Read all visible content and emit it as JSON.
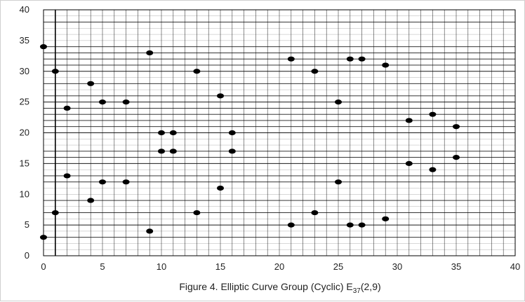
{
  "chart_data": {
    "type": "scatter",
    "caption": "Figure 4. Elliptic Curve Group (Cyclic) E",
    "caption_subscript": "37",
    "caption_tail": "(2,9)",
    "xlim": [
      0,
      40
    ],
    "ylim": [
      0,
      40
    ],
    "x_ticks": [
      0,
      5,
      10,
      15,
      20,
      25,
      30,
      35,
      40
    ],
    "y_ticks": [
      0,
      5,
      10,
      15,
      20,
      25,
      30,
      35,
      40
    ],
    "y_gridlines": [
      0,
      1,
      2,
      3,
      4,
      5,
      6,
      7,
      8,
      9,
      10,
      11,
      12,
      13,
      14,
      15,
      16,
      17,
      18,
      19,
      20,
      21,
      22,
      23,
      24,
      25,
      26,
      27,
      28,
      29,
      30,
      31,
      32,
      33,
      34,
      35,
      36,
      37,
      38,
      39,
      40
    ],
    "y_major_gridlines": [
      3,
      5,
      7,
      9,
      12,
      13,
      15,
      16,
      17,
      20,
      21,
      22,
      23,
      24,
      25,
      26,
      28,
      30,
      31,
      32,
      33,
      34,
      38,
      40
    ],
    "x_gridlines": [
      0,
      1,
      2,
      3,
      4,
      5,
      6,
      7,
      8,
      9,
      10,
      11,
      12,
      13,
      14,
      15,
      16,
      17,
      18,
      19,
      20,
      21,
      22,
      23,
      24,
      25,
      26,
      27,
      28,
      29,
      30,
      31,
      32,
      33,
      34,
      35,
      36,
      37,
      38,
      39,
      40
    ],
    "x_emphasized_line": 1,
    "grid": true,
    "points": [
      {
        "x": 0,
        "y": 3
      },
      {
        "x": 0,
        "y": 34
      },
      {
        "x": 1,
        "y": 7
      },
      {
        "x": 1,
        "y": 30
      },
      {
        "x": 2,
        "y": 13
      },
      {
        "x": 2,
        "y": 24
      },
      {
        "x": 4,
        "y": 9
      },
      {
        "x": 4,
        "y": 28
      },
      {
        "x": 5,
        "y": 12
      },
      {
        "x": 5,
        "y": 25
      },
      {
        "x": 7,
        "y": 12
      },
      {
        "x": 7,
        "y": 25
      },
      {
        "x": 9,
        "y": 4
      },
      {
        "x": 9,
        "y": 33
      },
      {
        "x": 10,
        "y": 17
      },
      {
        "x": 10,
        "y": 20
      },
      {
        "x": 11,
        "y": 17
      },
      {
        "x": 11,
        "y": 20
      },
      {
        "x": 13,
        "y": 7
      },
      {
        "x": 13,
        "y": 30
      },
      {
        "x": 15,
        "y": 11
      },
      {
        "x": 15,
        "y": 26
      },
      {
        "x": 16,
        "y": 17
      },
      {
        "x": 16,
        "y": 20
      },
      {
        "x": 21,
        "y": 5
      },
      {
        "x": 21,
        "y": 32
      },
      {
        "x": 23,
        "y": 7
      },
      {
        "x": 23,
        "y": 30
      },
      {
        "x": 25,
        "y": 12
      },
      {
        "x": 25,
        "y": 25
      },
      {
        "x": 26,
        "y": 5
      },
      {
        "x": 26,
        "y": 32
      },
      {
        "x": 27,
        "y": 5
      },
      {
        "x": 27,
        "y": 32
      },
      {
        "x": 29,
        "y": 6
      },
      {
        "x": 29,
        "y": 31
      },
      {
        "x": 31,
        "y": 15
      },
      {
        "x": 31,
        "y": 22
      },
      {
        "x": 33,
        "y": 14
      },
      {
        "x": 33,
        "y": 23
      },
      {
        "x": 35,
        "y": 16
      },
      {
        "x": 35,
        "y": 21
      }
    ],
    "colors": {
      "point": "#000000",
      "grid": "#000000",
      "background": "#ffffff"
    }
  }
}
